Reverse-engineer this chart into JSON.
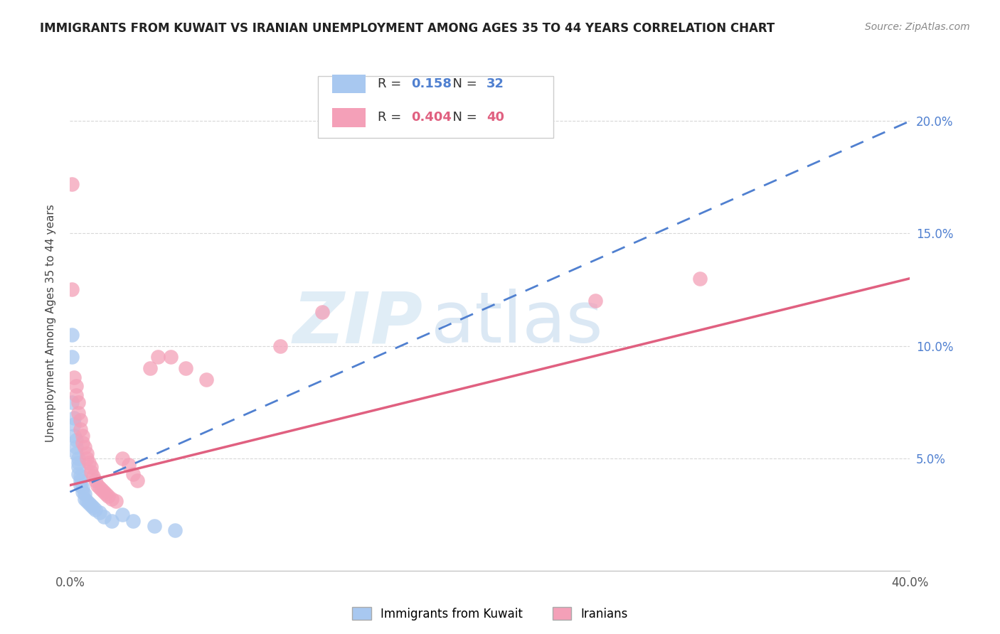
{
  "title": "IMMIGRANTS FROM KUWAIT VS IRANIAN UNEMPLOYMENT AMONG AGES 35 TO 44 YEARS CORRELATION CHART",
  "source": "Source: ZipAtlas.com",
  "ylabel": "Unemployment Among Ages 35 to 44 years",
  "kuwait_R": 0.158,
  "kuwait_N": 32,
  "iranian_R": 0.404,
  "iranian_N": 40,
  "kuwait_color": "#a8c8f0",
  "iranian_color": "#f4a0b8",
  "kuwait_line_color": "#5080d0",
  "iranian_line_color": "#e06080",
  "watermark_zip_color": "#c8dff0",
  "watermark_atlas_color": "#b0cce8",
  "background_color": "#ffffff",
  "grid_color": "#d8d8d8",
  "x_min": 0.0,
  "x_max": 0.4,
  "y_min": 0.0,
  "y_max": 0.22,
  "y_ticks": [
    0.05,
    0.1,
    0.15,
    0.2
  ],
  "y_tick_labels_right": [
    "5.0%",
    "10.0%",
    "15.0%",
    "20.0%"
  ],
  "right_tick_color": "#5080d0",
  "kuwait_scatter_x": [
    0.001,
    0.001,
    0.001,
    0.002,
    0.002,
    0.002,
    0.003,
    0.003,
    0.003,
    0.004,
    0.004,
    0.004,
    0.004,
    0.005,
    0.005,
    0.005,
    0.006,
    0.006,
    0.007,
    0.007,
    0.008,
    0.009,
    0.01,
    0.011,
    0.012,
    0.014,
    0.016,
    0.02,
    0.025,
    0.03,
    0.04,
    0.05
  ],
  "kuwait_scatter_y": [
    0.105,
    0.095,
    0.075,
    0.068,
    0.065,
    0.06,
    0.058,
    0.055,
    0.052,
    0.05,
    0.048,
    0.046,
    0.043,
    0.042,
    0.04,
    0.038,
    0.037,
    0.035,
    0.034,
    0.032,
    0.031,
    0.03,
    0.029,
    0.028,
    0.027,
    0.026,
    0.024,
    0.022,
    0.025,
    0.022,
    0.02,
    0.018
  ],
  "iranian_scatter_x": [
    0.001,
    0.001,
    0.002,
    0.003,
    0.003,
    0.004,
    0.004,
    0.005,
    0.005,
    0.006,
    0.006,
    0.007,
    0.008,
    0.008,
    0.009,
    0.01,
    0.01,
    0.011,
    0.012,
    0.013,
    0.014,
    0.015,
    0.016,
    0.017,
    0.018,
    0.02,
    0.022,
    0.025,
    0.028,
    0.03,
    0.032,
    0.038,
    0.042,
    0.048,
    0.055,
    0.065,
    0.1,
    0.12,
    0.25,
    0.3
  ],
  "iranian_scatter_y": [
    0.172,
    0.125,
    0.086,
    0.082,
    0.078,
    0.075,
    0.07,
    0.067,
    0.063,
    0.06,
    0.057,
    0.055,
    0.052,
    0.05,
    0.048,
    0.046,
    0.044,
    0.042,
    0.04,
    0.038,
    0.037,
    0.036,
    0.035,
    0.034,
    0.033,
    0.032,
    0.031,
    0.05,
    0.047,
    0.043,
    0.04,
    0.09,
    0.095,
    0.095,
    0.09,
    0.085,
    0.1,
    0.115,
    0.12,
    0.13
  ],
  "title_fontsize": 12,
  "source_fontsize": 10,
  "tick_fontsize": 12,
  "ylabel_fontsize": 11
}
